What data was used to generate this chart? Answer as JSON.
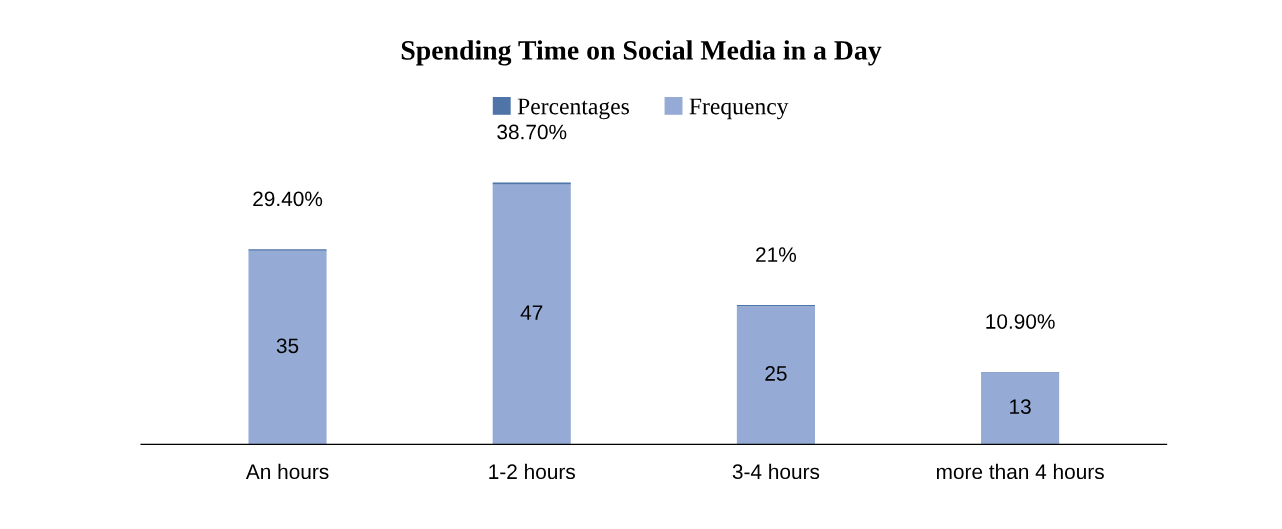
{
  "chart_data": {
    "type": "bar",
    "title": "Spending Time on Social Media in a Day",
    "categories": [
      "An hours",
      "1-2 hours",
      "3-4 hours",
      "more than 4 hours"
    ],
    "stacked": true,
    "legend": "top",
    "grid": false,
    "tick_labels": "x",
    "series": [
      {
        "name": "Frequency",
        "color": "#95abd6",
        "values": [
          35,
          47,
          25,
          13
        ],
        "value_labels": [
          "35",
          "47",
          "25",
          "13"
        ]
      },
      {
        "name": "Percentages",
        "color": "#4f74a8",
        "values": [
          0.294,
          0.387,
          0.21,
          0.109
        ],
        "value_labels": [
          "29.40%",
          "38.70%",
          "21%",
          "10.90%"
        ]
      }
    ]
  }
}
